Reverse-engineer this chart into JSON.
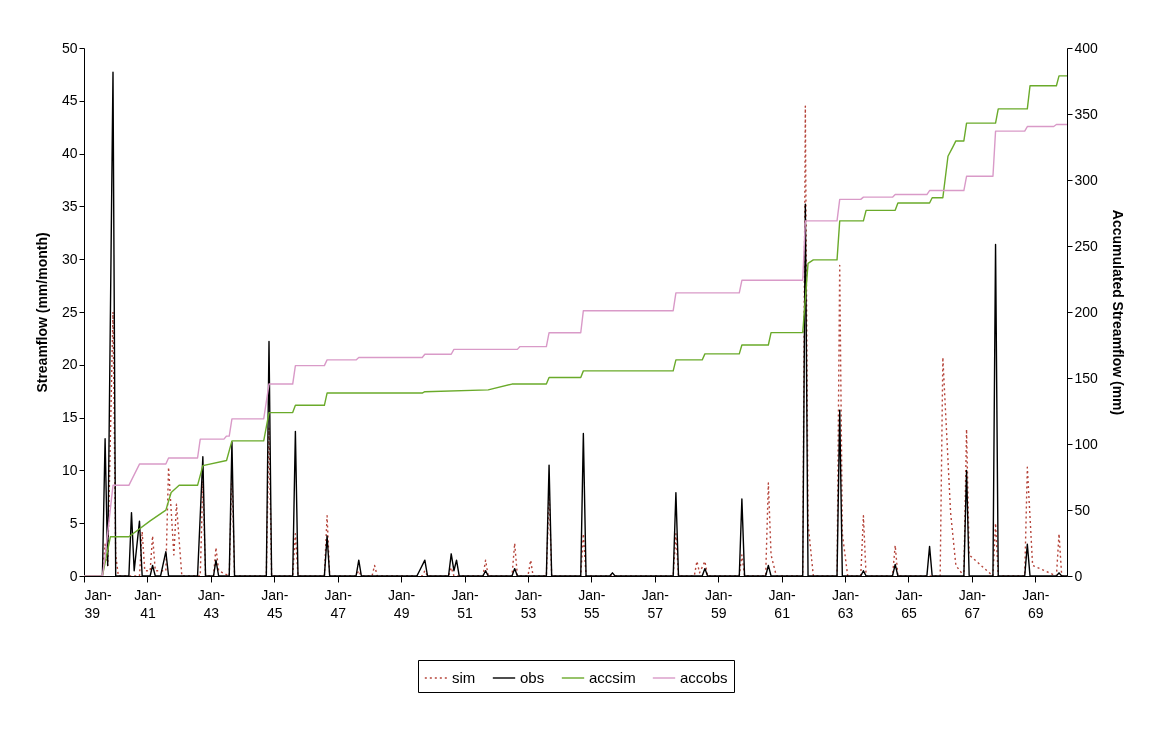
{
  "chart_data": {
    "type": "line",
    "ylabel": "Streamflow (mm/month)",
    "y2label": "Accumulated Streamflow (mm)",
    "xlim": [
      "1939-01",
      "1970-01"
    ],
    "xticks": [
      {
        "value": "1939-01",
        "label": "Jan-39"
      },
      {
        "value": "1941-01",
        "label": "Jan-41"
      },
      {
        "value": "1943-01",
        "label": "Jan-43"
      },
      {
        "value": "1945-01",
        "label": "Jan-45"
      },
      {
        "value": "1947-01",
        "label": "Jan-47"
      },
      {
        "value": "1949-01",
        "label": "Jan-49"
      },
      {
        "value": "1951-01",
        "label": "Jan-51"
      },
      {
        "value": "1953-01",
        "label": "Jan-53"
      },
      {
        "value": "1955-01",
        "label": "Jan-55"
      },
      {
        "value": "1957-01",
        "label": "Jan-57"
      },
      {
        "value": "1959-01",
        "label": "Jan-59"
      },
      {
        "value": "1961-01",
        "label": "Jan-61"
      },
      {
        "value": "1963-01",
        "label": "Jan-63"
      },
      {
        "value": "1965-01",
        "label": "Jan-65"
      },
      {
        "value": "1967-01",
        "label": "Jan-67"
      },
      {
        "value": "1969-01",
        "label": "Jan-69"
      }
    ],
    "ylim": [
      0,
      50
    ],
    "yticks": [
      0,
      5,
      10,
      15,
      20,
      25,
      30,
      35,
      40,
      45,
      50
    ],
    "y2lim": [
      0,
      400
    ],
    "y2ticks": [
      0,
      50,
      100,
      150,
      200,
      250,
      300,
      350,
      400
    ],
    "legend": "bottom",
    "series": [
      {
        "name": "sim",
        "color": "#b5443a",
        "line_style": "dotted",
        "x": [
          "1939-01",
          "1939-08",
          "1939-09",
          "1939-10",
          "1939-12",
          "1940-01",
          "1940-02",
          "1940-10",
          "1940-11",
          "1940-12",
          "1941-02",
          "1941-03",
          "1941-04",
          "1941-08",
          "1941-09",
          "1941-11",
          "1941-12",
          "1942-02",
          "1942-09",
          "1942-10",
          "1942-11",
          "1943-02",
          "1943-03",
          "1943-04",
          "1943-08",
          "1943-09",
          "1943-10",
          "1944-10",
          "1944-11",
          "1944-12",
          "1945-08",
          "1945-09",
          "1945-10",
          "1946-08",
          "1946-09",
          "1946-10",
          "1947-08",
          "1947-09",
          "1947-10",
          "1948-02",
          "1948-03",
          "1948-04",
          "1949-09",
          "1949-10",
          "1949-11",
          "1950-07",
          "1950-08",
          "1950-09",
          "1951-08",
          "1951-09",
          "1951-10",
          "1952-07",
          "1952-08",
          "1952-09",
          "1953-01",
          "1953-02",
          "1953-03",
          "1953-08",
          "1953-09",
          "1953-10",
          "1954-09",
          "1954-10",
          "1954-11",
          "1957-08",
          "1957-09",
          "1957-10",
          "1958-04",
          "1958-05",
          "1958-06",
          "1958-08",
          "1958-09",
          "1959-09",
          "1959-10",
          "1959-11",
          "1960-07",
          "1960-08",
          "1960-09",
          "1960-11",
          "1961-09",
          "1961-10",
          "1961-11",
          "1962-01",
          "1962-10",
          "1962-11",
          "1962-12",
          "1963-02",
          "1963-07",
          "1963-08",
          "1963-09",
          "1964-07",
          "1964-08",
          "1964-09",
          "1966-01",
          "1966-02",
          "1966-05",
          "1966-07",
          "1966-10",
          "1966-11",
          "1966-12",
          "1967-09",
          "1967-10",
          "1967-11",
          "1968-09",
          "1968-10",
          "1968-12",
          "1969-09",
          "1969-10",
          "1969-11",
          "1970-01"
        ],
        "values": [
          0,
          0,
          3,
          1,
          25,
          2,
          0,
          0,
          4.2,
          0.5,
          0.5,
          3.8,
          0.5,
          0.5,
          10.3,
          2,
          6.8,
          0,
          0,
          9,
          0,
          0,
          2.7,
          0.5,
          0,
          10,
          0,
          0,
          14,
          0,
          0,
          4,
          0,
          0,
          5.7,
          0,
          0,
          0.5,
          0,
          0,
          1.0,
          0,
          0,
          0.5,
          0,
          0,
          0.8,
          0,
          0,
          1.5,
          0,
          0,
          3.1,
          0,
          0,
          1.5,
          0,
          0,
          8,
          0,
          0,
          4,
          0,
          0,
          4,
          0,
          0,
          1.4,
          0.3,
          1.4,
          0,
          0,
          2,
          0,
          0,
          8.8,
          2,
          0,
          0,
          44.5,
          5,
          0,
          0,
          29.4,
          4,
          0,
          0,
          5.7,
          0,
          0,
          2.9,
          0,
          0,
          20.7,
          6,
          1,
          0,
          13.9,
          2,
          0,
          5,
          0,
          0,
          10.3,
          1,
          0,
          4.0,
          0,
          0
        ]
      },
      {
        "name": "obs",
        "color": "#000000",
        "line_style": "solid",
        "x": [
          "1939-01",
          "1939-08",
          "1939-09",
          "1939-10",
          "1939-12",
          "1940-01",
          "1940-06",
          "1940-07",
          "1940-08",
          "1940-10",
          "1940-11",
          "1941-02",
          "1941-03",
          "1941-04",
          "1941-06",
          "1941-08",
          "1941-09",
          "1942-08",
          "1942-10",
          "1942-11",
          "1943-02",
          "1943-03",
          "1943-04",
          "1943-08",
          "1943-09",
          "1943-10",
          "1944-10",
          "1944-11",
          "1944-12",
          "1945-08",
          "1945-09",
          "1945-10",
          "1946-08",
          "1946-09",
          "1946-10",
          "1947-08",
          "1947-09",
          "1947-10",
          "1949-07",
          "1949-08",
          "1949-10",
          "1949-11",
          "1950-07",
          "1950-08",
          "1950-09",
          "1950-10",
          "1950-11",
          "1951-08",
          "1951-09",
          "1951-10",
          "1952-07",
          "1952-08",
          "1952-09",
          "1953-08",
          "1953-09",
          "1953-10",
          "1954-09",
          "1954-10",
          "1954-11",
          "1955-08",
          "1955-09",
          "1955-10",
          "1957-08",
          "1957-09",
          "1957-10",
          "1958-07",
          "1958-08",
          "1958-09",
          "1959-09",
          "1959-10",
          "1959-11",
          "1960-07",
          "1960-08",
          "1960-09",
          "1961-09",
          "1961-10",
          "1961-11",
          "1962-10",
          "1962-11",
          "1962-12",
          "1963-07",
          "1963-08",
          "1963-09",
          "1964-07",
          "1964-08",
          "1964-09",
          "1965-08",
          "1965-09",
          "1965-10",
          "1966-10",
          "1966-11",
          "1966-12",
          "1967-09",
          "1967-10",
          "1967-11",
          "1968-09",
          "1968-10",
          "1968-11",
          "1969-09",
          "1969-10",
          "1969-11",
          "1970-01"
        ],
        "values": [
          0,
          0,
          13.0,
          1,
          47.7,
          0,
          0,
          6.0,
          0.5,
          5.2,
          0,
          0,
          1.0,
          0,
          0,
          2.3,
          0,
          0,
          11.3,
          0,
          0,
          1.5,
          0,
          0,
          12.7,
          0,
          0,
          22.2,
          0,
          0,
          13.7,
          0,
          0,
          3.8,
          0,
          0,
          1.5,
          0,
          0,
          0.5,
          1.5,
          0,
          0,
          2.1,
          0.5,
          1.5,
          0,
          0,
          0.5,
          0,
          0,
          0.7,
          0,
          0,
          10.5,
          0,
          0,
          13.5,
          0,
          0,
          0.3,
          0,
          0,
          7.9,
          0,
          0,
          0.7,
          0,
          0,
          7.3,
          0,
          0,
          1.0,
          0,
          0,
          35.2,
          0,
          0,
          15.7,
          0,
          0,
          0.5,
          0,
          0,
          1.1,
          0,
          0,
          2.8,
          0,
          0,
          10.0,
          0,
          0,
          31.4,
          0,
          0,
          3.0,
          0,
          0,
          0.3,
          0,
          0
        ]
      },
      {
        "name": "accsim",
        "axis": "y2",
        "color": "#6aaa2a",
        "line_style": "solid",
        "x": [
          "1939-01",
          "1939-08",
          "1939-11",
          "1940-06",
          "1941-02",
          "1941-08",
          "1941-10",
          "1942-01",
          "1942-08",
          "1942-10",
          "1943-07",
          "1943-09",
          "1944-09",
          "1944-11",
          "1945-08",
          "1945-09",
          "1946-08",
          "1946-09",
          "1949-09",
          "1949-10",
          "1951-10",
          "1952-07",
          "1953-08",
          "1953-09",
          "1954-09",
          "1954-10",
          "1957-08",
          "1957-09",
          "1958-07",
          "1958-08",
          "1959-09",
          "1959-10",
          "1960-08",
          "1960-09",
          "1961-09",
          "1961-11",
          "1962-01",
          "1962-10",
          "1962-11",
          "1963-08",
          "1963-09",
          "1964-08",
          "1964-09",
          "1965-09",
          "1965-10",
          "1966-02",
          "1966-04",
          "1966-06",
          "1966-07",
          "1966-10",
          "1966-11",
          "1967-10",
          "1967-11",
          "1968-10",
          "1968-11",
          "1969-09",
          "1969-10",
          "1970-01"
        ],
        "values": [
          0,
          0,
          29.7,
          29.7,
          41.8,
          49.9,
          63.3,
          68.7,
          68.7,
          83.6,
          87.5,
          102.4,
          102.4,
          123.8,
          123.8,
          129.3,
          129.3,
          138.6,
          138.6,
          139.6,
          141,
          145.4,
          145.4,
          150.4,
          150.4,
          155.4,
          155.4,
          163.7,
          163.7,
          168.3,
          168.3,
          175,
          175,
          184.4,
          184.4,
          236.8,
          239.5,
          239.5,
          269,
          269,
          277,
          277,
          282.6,
          282.6,
          286.6,
          286.6,
          318,
          325.7,
          329.6,
          329.6,
          343.1,
          343.1,
          353.9,
          353.9,
          371.4,
          371.4,
          378.9,
          378.9
        ]
      },
      {
        "name": "accobs",
        "axis": "y2",
        "color": "#d99ac8",
        "line_style": "solid",
        "x": [
          "1939-01",
          "1939-08",
          "1939-09",
          "1939-12",
          "1940-06",
          "1940-10",
          "1941-08",
          "1941-09",
          "1942-08",
          "1942-09",
          "1943-06",
          "1943-07",
          "1943-08",
          "1943-09",
          "1944-09",
          "1944-11",
          "1945-08",
          "1945-09",
          "1946-08",
          "1946-09",
          "1947-08",
          "1947-09",
          "1949-09",
          "1949-10",
          "1950-08",
          "1950-09",
          "1952-09",
          "1952-10",
          "1953-08",
          "1953-09",
          "1954-09",
          "1954-10",
          "1957-08",
          "1957-09",
          "1959-09",
          "1959-10",
          "1961-09",
          "1961-10",
          "1962-10",
          "1962-11",
          "1963-07",
          "1963-08",
          "1964-07",
          "1964-08",
          "1965-08",
          "1965-09",
          "1966-10",
          "1966-11",
          "1967-09",
          "1967-10",
          "1968-09",
          "1968-10",
          "1969-08",
          "1969-09",
          "1970-01"
        ],
        "values": [
          0,
          0,
          15,
          68.7,
          68.7,
          84.8,
          84.8,
          89.4,
          89.4,
          103.7,
          103.7,
          106,
          106,
          119,
          119,
          145.4,
          145.4,
          159.4,
          159.4,
          163.7,
          163.7,
          165.5,
          165.5,
          168,
          168,
          171.7,
          171.7,
          173.8,
          173.8,
          184.3,
          184.3,
          201,
          201,
          214.5,
          214.5,
          224,
          224,
          269,
          269,
          285.3,
          285.3,
          287,
          287,
          289,
          289,
          292,
          292,
          302.8,
          302.8,
          337,
          337,
          340.5,
          340.5,
          342,
          342
        ]
      }
    ]
  }
}
